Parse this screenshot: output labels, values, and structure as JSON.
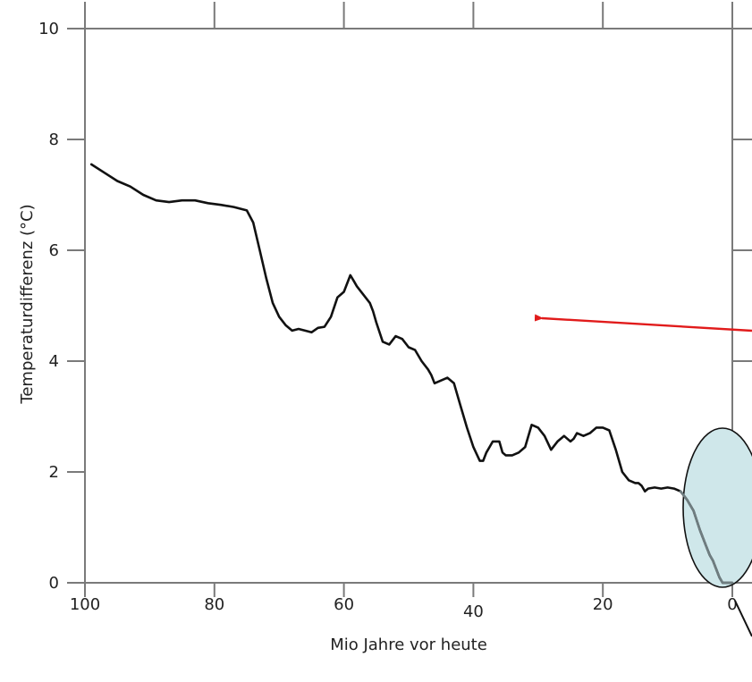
{
  "chart_data": {
    "type": "line",
    "title": "",
    "xlabel": "Mio Jahre vor heute",
    "ylabel": "Temperaturdifferenz  (°C)",
    "xlim": [
      100,
      0
    ],
    "ylim": [
      0,
      10
    ],
    "x_ticks": [
      "100",
      "80",
      "60",
      "40",
      "20",
      "0"
    ],
    "y_ticks": [
      "0",
      "2",
      "4",
      "6",
      "8",
      "10"
    ],
    "grid": false,
    "series": [
      {
        "x": [
          99,
          97,
          95,
          93,
          91,
          89,
          87,
          85,
          83,
          81,
          79,
          77,
          75,
          74,
          73,
          72,
          71,
          70,
          69,
          68,
          67,
          66,
          65,
          64,
          63,
          62,
          61,
          60,
          59,
          58.5,
          58,
          57,
          56,
          55.5,
          55,
          54,
          53,
          52,
          51,
          50,
          49,
          48,
          47,
          46.5,
          46,
          45,
          44,
          43,
          42,
          41,
          40,
          39,
          38.5,
          38,
          37.5,
          37,
          36.5,
          36,
          35.5,
          35,
          34,
          33,
          32,
          31,
          30,
          29,
          28,
          27,
          26,
          25.5,
          25,
          24.5,
          24,
          23,
          22,
          21,
          20,
          19,
          18,
          17,
          16,
          15,
          14.5,
          14,
          13.5,
          13,
          12,
          11,
          10,
          9,
          8,
          7,
          6,
          5,
          4,
          3.5,
          3,
          2.5,
          2,
          1.5,
          1,
          0.5,
          0
        ],
        "values": [
          7.55,
          7.4,
          7.25,
          7.15,
          7.0,
          6.9,
          6.87,
          6.9,
          6.9,
          6.85,
          6.82,
          6.78,
          6.72,
          6.5,
          6.0,
          5.5,
          5.05,
          4.8,
          4.65,
          4.55,
          4.58,
          4.55,
          4.52,
          4.6,
          4.62,
          4.8,
          5.15,
          5.25,
          5.55,
          5.45,
          5.35,
          5.2,
          5.05,
          4.9,
          4.7,
          4.35,
          4.3,
          4.45,
          4.4,
          4.25,
          4.2,
          4.0,
          3.85,
          3.75,
          3.6,
          3.65,
          3.7,
          3.6,
          3.2,
          2.8,
          2.45,
          2.2,
          2.2,
          2.35,
          2.45,
          2.55,
          2.55,
          2.55,
          2.35,
          2.3,
          2.3,
          2.35,
          2.45,
          2.85,
          2.8,
          2.65,
          2.4,
          2.55,
          2.65,
          2.6,
          2.55,
          2.6,
          2.7,
          2.65,
          2.7,
          2.8,
          2.8,
          2.75,
          2.4,
          2.0,
          1.85,
          1.8,
          1.8,
          1.75,
          1.65,
          1.7,
          1.72,
          1.7,
          1.72,
          1.7,
          1.65,
          1.5,
          1.3,
          0.95,
          0.65,
          0.5,
          0.4,
          0.25,
          0.1,
          0.0,
          0.0,
          0.0,
          0.0
        ]
      }
    ],
    "annotations": [
      {
        "type": "arrow",
        "color": "#e11b1b"
      },
      {
        "type": "ellipse-highlight",
        "fill": "#cfe7ea"
      }
    ]
  }
}
